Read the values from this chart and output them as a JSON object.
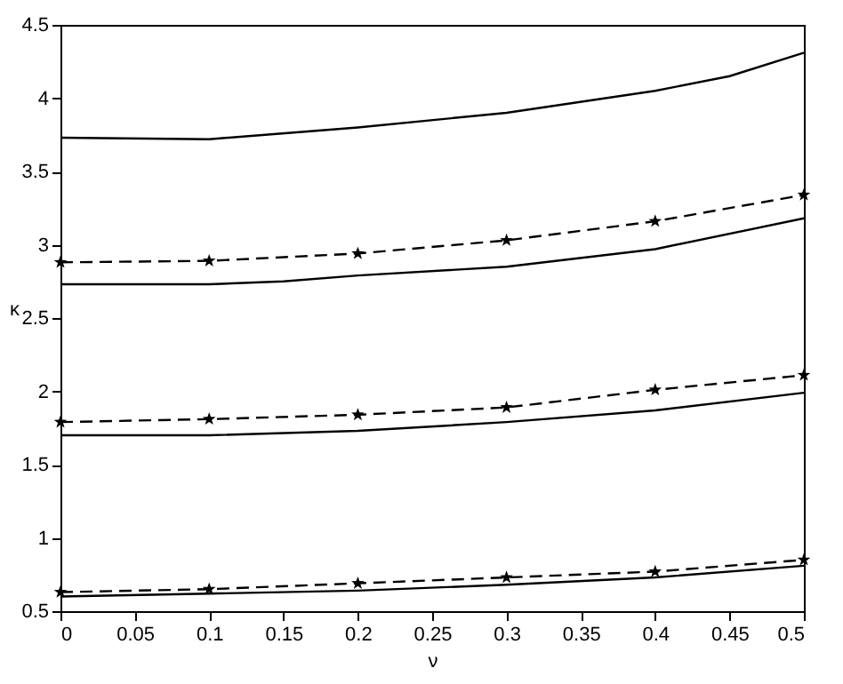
{
  "chart_data": {
    "type": "line",
    "xlabel": "ν",
    "ylabel": "κ",
    "x": [
      0,
      0.1,
      0.2,
      0.3,
      0.4,
      0.5
    ],
    "series": [
      {
        "color": "#000000",
        "line_style": "solid",
        "marker": "none",
        "x": [
          0,
          0.1,
          0.2,
          0.3,
          0.4,
          0.45,
          0.5
        ],
        "values": [
          3.73,
          3.72,
          3.8,
          3.9,
          4.05,
          4.15,
          4.31
        ]
      },
      {
        "color": "#000000",
        "line_style": "dashed",
        "marker": "star",
        "values": [
          2.88,
          2.89,
          2.94,
          3.03,
          3.16,
          3.34
        ]
      },
      {
        "color": "#000000",
        "line_style": "solid",
        "marker": "none",
        "x": [
          0,
          0.1,
          0.15,
          0.2,
          0.3,
          0.4,
          0.5
        ],
        "values": [
          2.73,
          2.73,
          2.75,
          2.79,
          2.85,
          2.97,
          3.18
        ]
      },
      {
        "color": "#000000",
        "line_style": "dashed",
        "marker": "star",
        "values": [
          1.79,
          1.81,
          1.84,
          1.89,
          2.01,
          2.11
        ]
      },
      {
        "color": "#000000",
        "line_style": "solid",
        "marker": "none",
        "values": [
          1.7,
          1.7,
          1.73,
          1.79,
          1.87,
          1.99
        ]
      },
      {
        "color": "#000000",
        "line_style": "dashed",
        "marker": "star",
        "values": [
          0.63,
          0.65,
          0.69,
          0.73,
          0.77,
          0.85
        ]
      },
      {
        "color": "#000000",
        "line_style": "solid",
        "marker": "none",
        "values": [
          0.6,
          0.62,
          0.64,
          0.68,
          0.73,
          0.81
        ]
      }
    ],
    "xlim": [
      0,
      0.5
    ],
    "xticks": [
      0,
      0.05,
      0.1,
      0.15,
      0.2,
      0.25,
      0.3,
      0.35,
      0.4,
      0.45,
      0.5
    ],
    "ylim": [
      0.5,
      4.5
    ],
    "yticks": [
      0.5,
      1,
      1.5,
      2,
      2.5,
      3,
      3.5,
      4,
      4.5
    ],
    "grid": false
  }
}
